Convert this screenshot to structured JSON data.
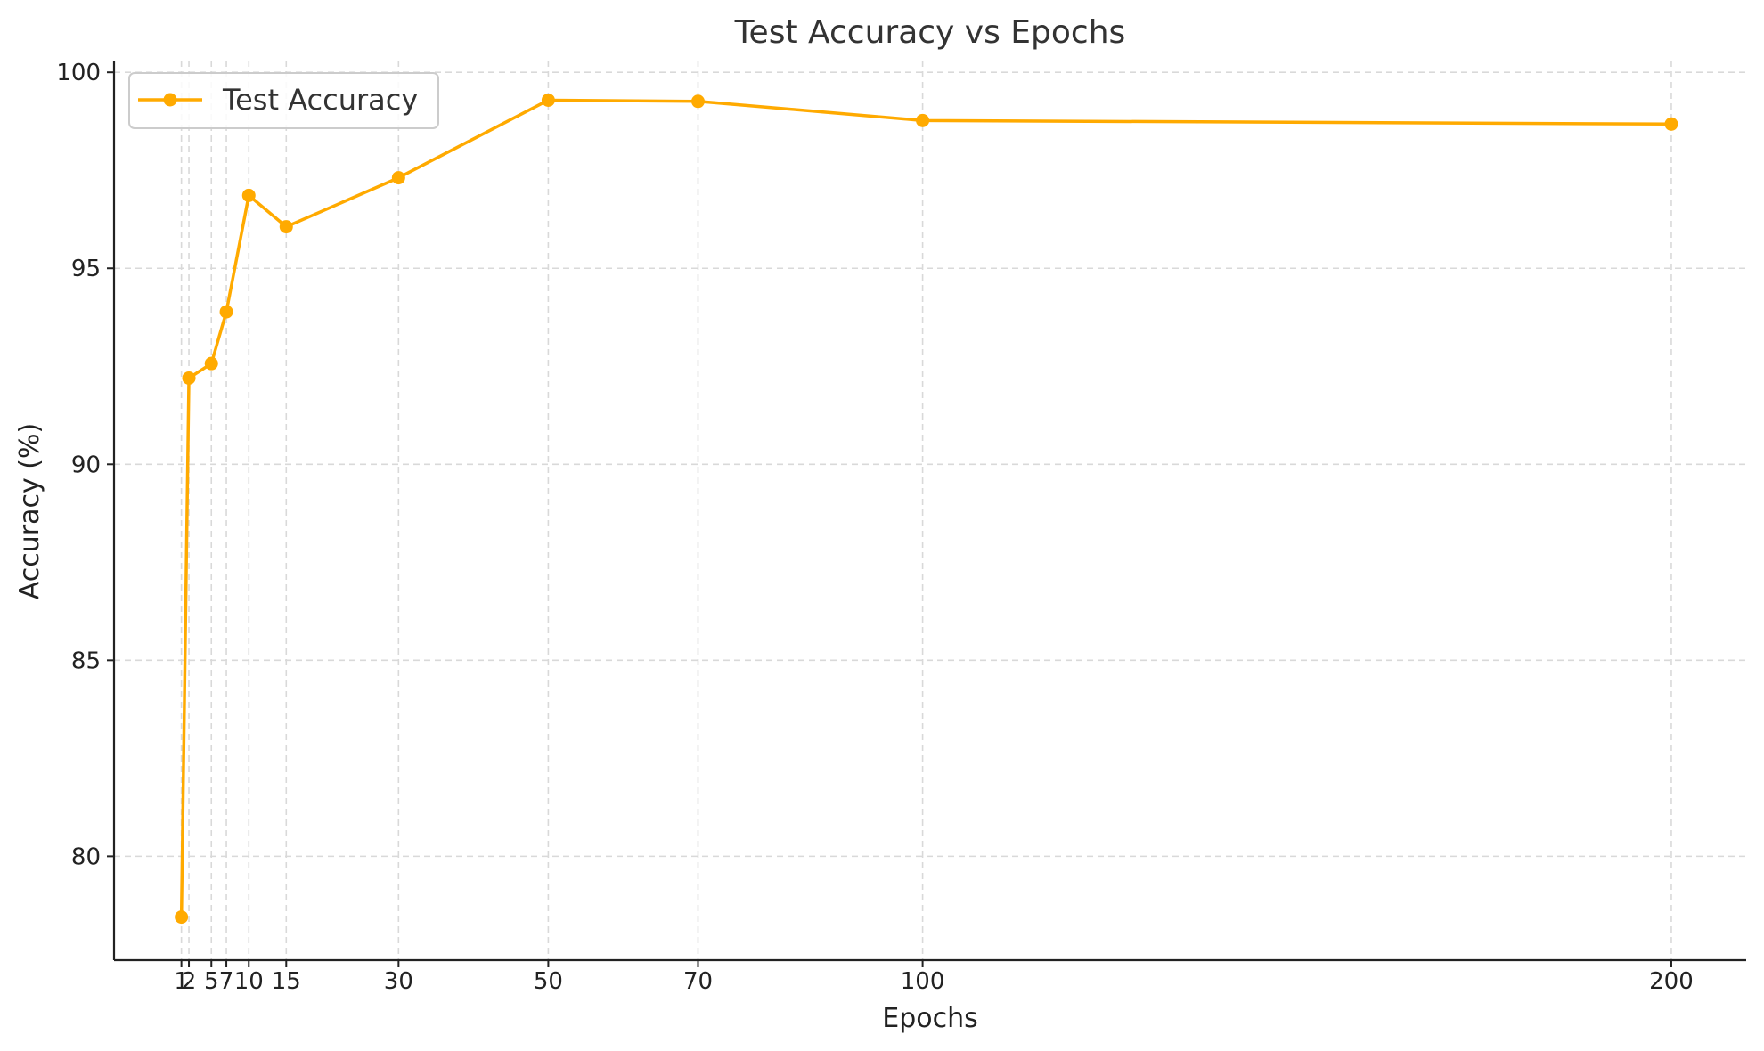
{
  "chart_data": {
    "type": "line",
    "title": "Test Accuracy vs Epochs",
    "xlabel": "Epochs",
    "ylabel": "Accuracy (%)",
    "x": [
      1,
      2,
      5,
      7,
      10,
      15,
      30,
      50,
      70,
      100,
      200
    ],
    "x_ticks": [
      1,
      2,
      5,
      7,
      10,
      15,
      30,
      50,
      70,
      100,
      200
    ],
    "xlim": [
      -8,
      210
    ],
    "y_ticks": [
      80,
      85,
      90,
      95,
      100
    ],
    "ylim": [
      77.35,
      100.3
    ],
    "grid": true,
    "legend_position": "top-left",
    "series": [
      {
        "name": "Test Accuracy",
        "color": "#FFAA00",
        "marker": "circle",
        "values": [
          78.45,
          92.2,
          92.57,
          93.89,
          96.86,
          96.06,
          97.31,
          99.29,
          99.26,
          98.77,
          98.68
        ]
      }
    ]
  }
}
